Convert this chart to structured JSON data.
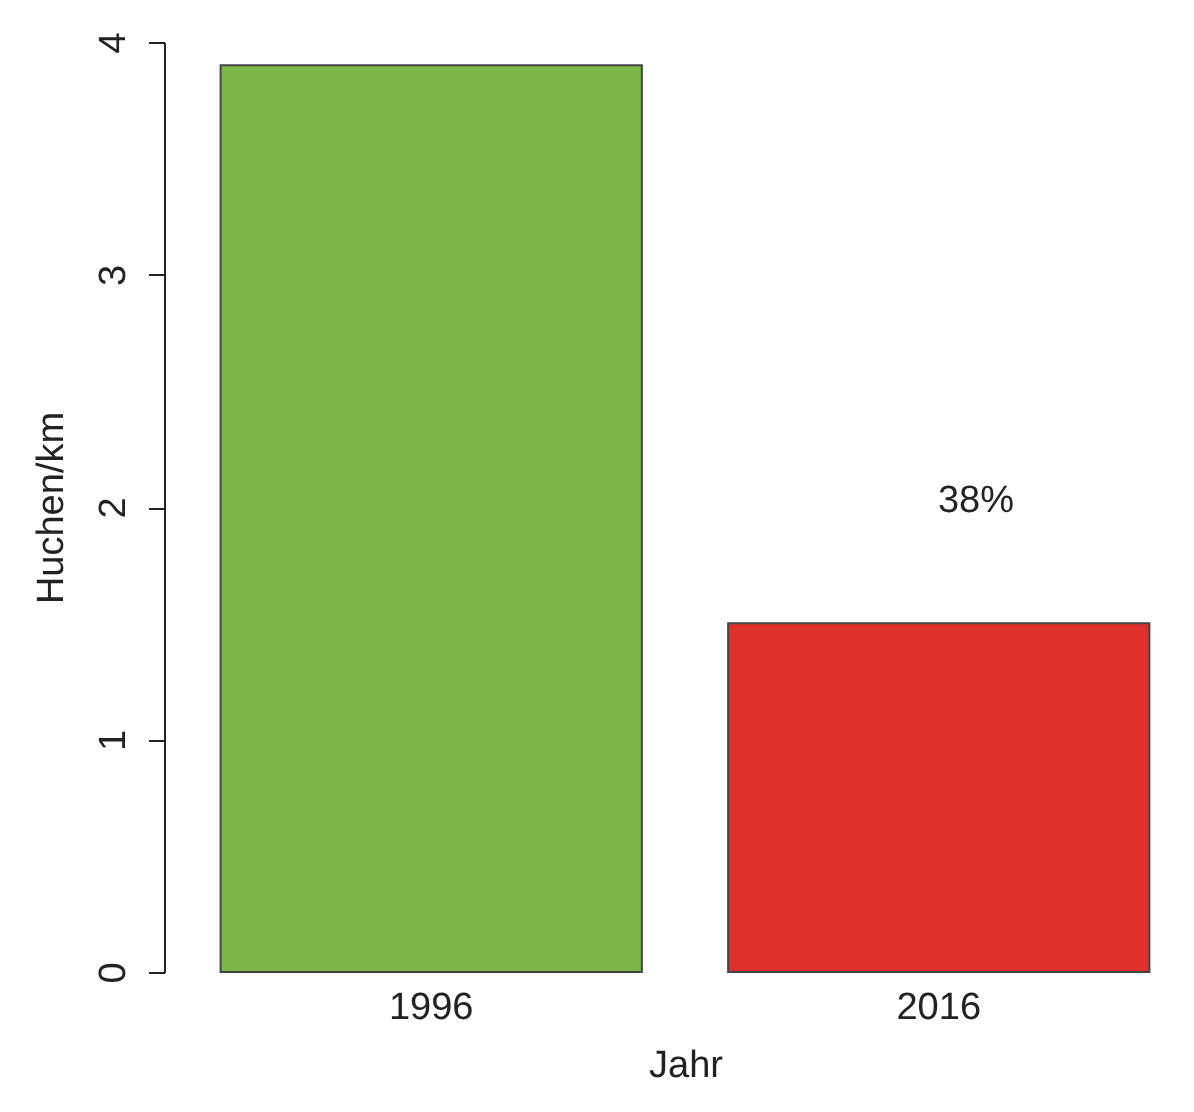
{
  "chart_data": {
    "type": "bar",
    "xlabel": "Jahr",
    "ylabel": "Huchen/km",
    "categories": [
      "1996",
      "2016"
    ],
    "values": [
      3.9,
      1.5
    ],
    "colors": [
      "#7ab648",
      "#e0302a"
    ],
    "ylim": [
      0,
      4
    ],
    "yticks": [
      0,
      1,
      2,
      3,
      4
    ],
    "annotations": [
      "38%"
    ]
  }
}
